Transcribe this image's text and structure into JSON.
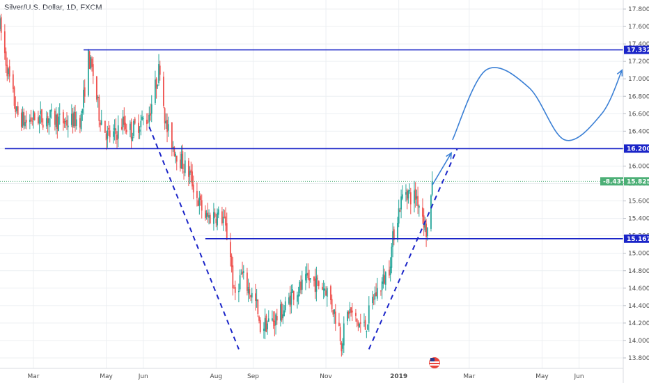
{
  "chart_title": "Silver/U.S. Dollar, 1D, FXCM",
  "colors": {
    "up": "#26a69a",
    "down": "#ef5350",
    "level_line": "#1a24c8",
    "trend": "#1a24c8",
    "projection": "#3a7fd5",
    "last_price": "#4caf76",
    "grid": "#eceff2"
  },
  "chart_data": {
    "type": "candlestick",
    "symbol": "Silver/U.S. Dollar",
    "timeframe": "1D",
    "source": "FXCM",
    "y_ticks": [
      "13.800",
      "14.000",
      "14.200",
      "14.400",
      "14.600",
      "14.800",
      "15.000",
      "15.200",
      "15.400",
      "15.600",
      "15.800",
      "16.000",
      "16.200",
      "16.400",
      "16.600",
      "16.800",
      "17.000",
      "17.200",
      "17.400",
      "17.600",
      "17.800"
    ],
    "ylim": [
      13.75,
      17.85
    ],
    "x_ticks": [
      {
        "label": "Mar",
        "date": "2018-03-01",
        "bold": false
      },
      {
        "label": "May",
        "date": "2018-05-01",
        "bold": false
      },
      {
        "label": "Jun",
        "date": "2018-06-01",
        "bold": false
      },
      {
        "label": "Aug",
        "date": "2018-08-01",
        "bold": false
      },
      {
        "label": "Sep",
        "date": "2018-09-01",
        "bold": false
      },
      {
        "label": "Nov",
        "date": "2018-11-01",
        "bold": false
      },
      {
        "label": "2019",
        "date": "2019-01-01",
        "bold": true
      },
      {
        "label": "Mar",
        "date": "2019-03-01",
        "bold": false
      },
      {
        "label": "May",
        "date": "2019-05-01",
        "bold": false
      },
      {
        "label": "Jun",
        "date": "2019-06-01",
        "bold": false
      }
    ],
    "xlim": [
      "2018-02-01",
      "2019-07-08"
    ],
    "horizontal_levels": [
      {
        "value": 17.332,
        "label": "17.332",
        "from": "2018-04-12"
      },
      {
        "value": 16.2,
        "label": "16.200",
        "from": "2018-02-05"
      },
      {
        "value": 15.167,
        "label": "15.167",
        "from": "2018-07-23"
      }
    ],
    "last_price": {
      "value": 15.825,
      "change": "-8.43%",
      "label": "15.825"
    },
    "trend_lines": [
      {
        "points": [
          [
            "2018-06-06",
            16.45
          ],
          [
            "2018-08-20",
            13.9
          ]
        ]
      },
      {
        "points": [
          [
            "2018-12-07",
            13.9
          ],
          [
            "2019-02-19",
            16.2
          ]
        ]
      }
    ],
    "projection_path": [
      [
        "2019-02-15",
        16.3
      ],
      [
        "2019-03-15",
        17.1
      ],
      [
        "2019-04-20",
        16.9
      ],
      [
        "2019-05-20",
        16.3
      ],
      [
        "2019-06-20",
        16.6
      ],
      [
        "2019-07-07",
        17.1
      ]
    ],
    "projection_arrow": [
      [
        "2019-01-29",
        15.78
      ],
      [
        "2019-02-14",
        16.15
      ]
    ],
    "price_path": [
      [
        "2018-02-01",
        17.6
      ],
      [
        "2018-02-08",
        17.05
      ],
      [
        "2018-02-15",
        16.6
      ],
      [
        "2018-02-22",
        16.5
      ],
      [
        "2018-03-01",
        16.55
      ],
      [
        "2018-03-15",
        16.55
      ],
      [
        "2018-03-29",
        16.5
      ],
      [
        "2018-04-10",
        16.55
      ],
      [
        "2018-04-16",
        17.25
      ],
      [
        "2018-04-20",
        17.05
      ],
      [
        "2018-04-25",
        16.6
      ],
      [
        "2018-05-02",
        16.35
      ],
      [
        "2018-05-08",
        16.35
      ],
      [
        "2018-05-15",
        16.5
      ],
      [
        "2018-05-22",
        16.4
      ],
      [
        "2018-05-29",
        16.5
      ],
      [
        "2018-06-05",
        16.55
      ],
      [
        "2018-06-11",
        16.9
      ],
      [
        "2018-06-15",
        17.15
      ],
      [
        "2018-06-20",
        16.45
      ],
      [
        "2018-06-27",
        16.2
      ],
      [
        "2018-07-03",
        16.05
      ],
      [
        "2018-07-10",
        15.9
      ],
      [
        "2018-07-17",
        15.6
      ],
      [
        "2018-07-24",
        15.4
      ],
      [
        "2018-07-31",
        15.45
      ],
      [
        "2018-08-07",
        15.4
      ],
      [
        "2018-08-13",
        15.0
      ],
      [
        "2018-08-16",
        14.5
      ],
      [
        "2018-08-22",
        14.75
      ],
      [
        "2018-08-28",
        14.6
      ],
      [
        "2018-09-04",
        14.4
      ],
      [
        "2018-09-06",
        14.15
      ],
      [
        "2018-09-13",
        14.2
      ],
      [
        "2018-09-20",
        14.25
      ],
      [
        "2018-09-27",
        14.35
      ],
      [
        "2018-10-04",
        14.55
      ],
      [
        "2018-10-11",
        14.6
      ],
      [
        "2018-10-18",
        14.7
      ],
      [
        "2018-10-25",
        14.65
      ],
      [
        "2018-11-01",
        14.6
      ],
      [
        "2018-11-05",
        14.45
      ],
      [
        "2018-11-12",
        14.15
      ],
      [
        "2018-11-14",
        13.98
      ],
      [
        "2018-11-20",
        14.35
      ],
      [
        "2018-11-27",
        14.2
      ],
      [
        "2018-12-04",
        14.15
      ],
      [
        "2018-12-11",
        14.5
      ],
      [
        "2018-12-18",
        14.65
      ],
      [
        "2018-12-24",
        14.85
      ],
      [
        "2018-12-28",
        15.25
      ],
      [
        "2019-01-02",
        15.55
      ],
      [
        "2019-01-06",
        15.75
      ],
      [
        "2019-01-11",
        15.65
      ],
      [
        "2019-01-16",
        15.65
      ],
      [
        "2019-01-21",
        15.45
      ],
      [
        "2019-01-24",
        15.25
      ],
      [
        "2019-01-27",
        15.3
      ],
      [
        "2019-01-29",
        15.825
      ]
    ]
  }
}
